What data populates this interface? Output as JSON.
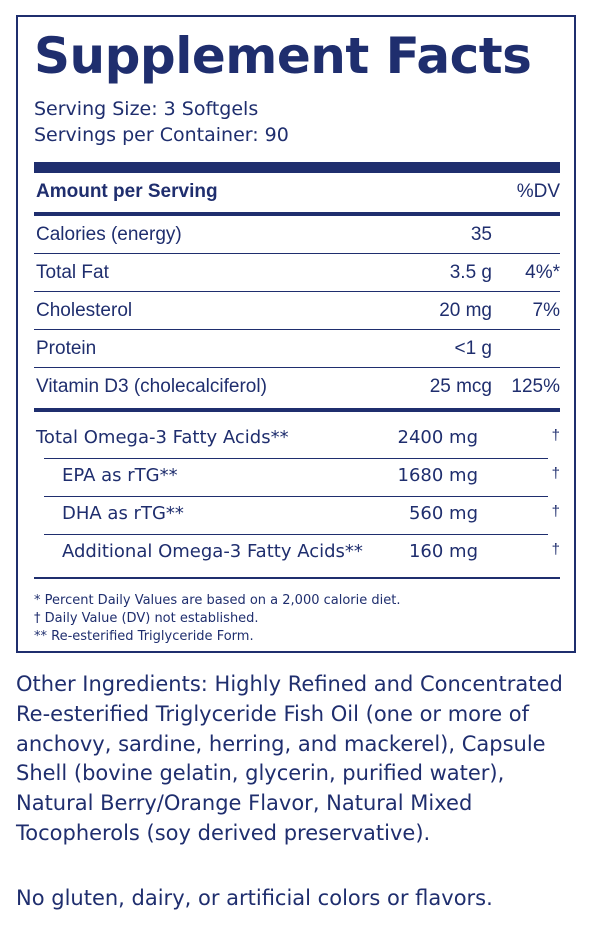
{
  "title": "Supplement Facts",
  "serving_size": "Serving Size: 3 Softgels",
  "servings_per_container": "Servings per Container: 90",
  "header": {
    "amount": "Amount per Serving",
    "dv": "%DV"
  },
  "nutrients": [
    {
      "name": "Calories (energy)",
      "amount": "35",
      "dv": ""
    },
    {
      "name": "Total Fat",
      "amount": "3.5 g",
      "dv": "4%*"
    },
    {
      "name": "Cholesterol",
      "amount": "20 mg",
      "dv": "7%"
    },
    {
      "name": "Protein",
      "amount": "<1 g",
      "dv": ""
    },
    {
      "name": "Vitamin D3 (cholecalciferol)",
      "amount": "25 mcg",
      "dv": "125%"
    }
  ],
  "omega": [
    {
      "name": "Total Omega-3 Fatty Acids**",
      "amount": "2400 mg",
      "dv": "†"
    },
    {
      "name": "EPA as rTG**",
      "amount": "1680 mg",
      "dv": "†"
    },
    {
      "name": "DHA as rTG**",
      "amount": "560 mg",
      "dv": "†"
    },
    {
      "name": "Additional Omega-3 Fatty Acids**",
      "amount": "160 mg",
      "dv": "†"
    }
  ],
  "footnotes": [
    "* Percent Daily Values are based on a 2,000 calorie diet.",
    "† Daily Value (DV) not established.",
    "** Re-esterified Triglyceride Form."
  ],
  "other_ingredients": "Other Ingredients: Highly Refined and Concentrated Re-esterified Triglyceride Fish Oil (one or more of anchovy, sardine, herring, and mackerel), Capsule Shell (bovine gelatin, glycerin, purified water), Natural Berry/Orange Flavor, Natural Mixed Tocopherols (soy derived preservative).",
  "allergen_statement": "No gluten, dairy, or artificial colors or flavors."
}
